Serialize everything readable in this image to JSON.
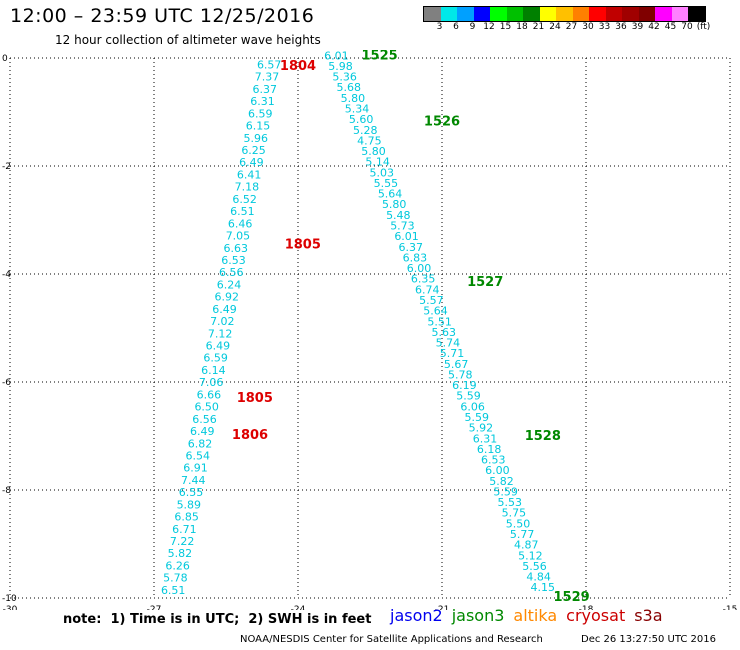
{
  "header": {
    "title": "12:00 – 23:59 UTC 12/25/2016",
    "subtitle": "12 hour collection of altimeter wave heights"
  },
  "colorbar": {
    "colors": [
      "#808080",
      "#00e8e8",
      "#00a0ff",
      "#0000ff",
      "#00ff00",
      "#00c000",
      "#008000",
      "#ffff00",
      "#ffc000",
      "#ff8000",
      "#ff0000",
      "#c00000",
      "#a00000",
      "#800000",
      "#ff00ff",
      "#ff80ff",
      "#000000"
    ],
    "labels": [
      "3",
      "6",
      "9",
      "12",
      "15",
      "18",
      "21",
      "24",
      "27",
      "30",
      "33",
      "36",
      "39",
      "42",
      "45",
      "70",
      "(ft)"
    ]
  },
  "footer": {
    "note": "note:  1) Time is in UTC;  2) SWH is in feet",
    "satellites": [
      {
        "name": "jason2",
        "color": "#0000ee"
      },
      {
        "name": "jason3",
        "color": "#008800"
      },
      {
        "name": "altika",
        "color": "#ff8800"
      },
      {
        "name": "cryosat",
        "color": "#cc0000"
      },
      {
        "name": "s3a",
        "color": "#880000"
      }
    ],
    "credit": "NOAA/NESDIS Center for Satellite Applications and Research",
    "timestamp": "Dec 26 13:27:50 UTC 2016"
  },
  "chart_data": {
    "type": "scatter",
    "title": "12:00 – 23:59 UTC 12/25/2016",
    "subtitle": "12 hour collection of altimeter wave heights",
    "xlim": [
      -30,
      -15
    ],
    "ylim": [
      -10,
      0
    ],
    "x_ticks": [
      "-30",
      "-27",
      "-24",
      "-21",
      "-18",
      "-15"
    ],
    "y_ticks": [
      "0",
      "-2",
      "-4",
      "-6",
      "-8",
      "-10"
    ],
    "grid": true,
    "point_color": "#00c8dc",
    "series": [
      {
        "satellite": "cryosat",
        "label_color": "#dd0000",
        "start": [
          -24.6,
          -0.12
        ],
        "end": [
          -26.6,
          -9.85
        ],
        "values": [
          "6.57",
          "7.37",
          "6.37",
          "6.31",
          "6.59",
          "6.15",
          "5.96",
          "6.25",
          "6.49",
          "6.41",
          "7.18",
          "6.52",
          "6.51",
          "6.46",
          "7.05",
          "6.63",
          "6.53",
          "6.56",
          "6.24",
          "6.92",
          "6.49",
          "7.02",
          "7.12",
          "6.49",
          "6.59",
          "6.14",
          "7.06",
          "6.66",
          "6.50",
          "6.56",
          "6.49",
          "6.82",
          "6.54",
          "6.91",
          "7.44",
          "6.55",
          "5.89",
          "6.85",
          "6.71",
          "7.22",
          "5.82",
          "6.26",
          "5.78",
          "6.51"
        ],
        "time_labels": [
          {
            "text": "1804",
            "x": -24.0,
            "y": -0.15
          },
          {
            "text": "1805",
            "x": -23.9,
            "y": -3.45
          },
          {
            "text": "1805",
            "x": -24.9,
            "y": -6.3
          },
          {
            "text": "1806",
            "x": -25.0,
            "y": -6.98
          }
        ]
      },
      {
        "satellite": "jason3",
        "label_color": "#008800",
        "start": [
          -23.2,
          0.05
        ],
        "end": [
          -18.9,
          -9.8
        ],
        "values": [
          "6.01",
          "5.98",
          "5.36",
          "5.68",
          "5.80",
          "5.34",
          "5.60",
          "5.28",
          "4.75",
          "5.80",
          "5.14",
          "5.03",
          "5.55",
          "5.64",
          "5.80",
          "5.48",
          "5.73",
          "6.01",
          "6.37",
          "6.83",
          "6.00",
          "6.35",
          "6.74",
          "5.57",
          "5.64",
          "5.51",
          "5.63",
          "5.74",
          "5.71",
          "5.67",
          "5.78",
          "6.19",
          "5.59",
          "6.06",
          "5.59",
          "5.92",
          "6.31",
          "6.18",
          "6.53",
          "6.00",
          "5.82",
          "5.59",
          "5.53",
          "5.75",
          "5.50",
          "5.77",
          "4.87",
          "5.12",
          "5.56",
          "4.84",
          "4.15"
        ],
        "time_labels": [
          {
            "text": "1525",
            "x": -22.3,
            "y": 0.05
          },
          {
            "text": "1526",
            "x": -21.0,
            "y": -1.18
          },
          {
            "text": "1527",
            "x": -20.1,
            "y": -4.15
          },
          {
            "text": "1528",
            "x": -18.9,
            "y": -7.0
          },
          {
            "text": "1529",
            "x": -18.3,
            "y": -9.98
          }
        ]
      }
    ]
  }
}
